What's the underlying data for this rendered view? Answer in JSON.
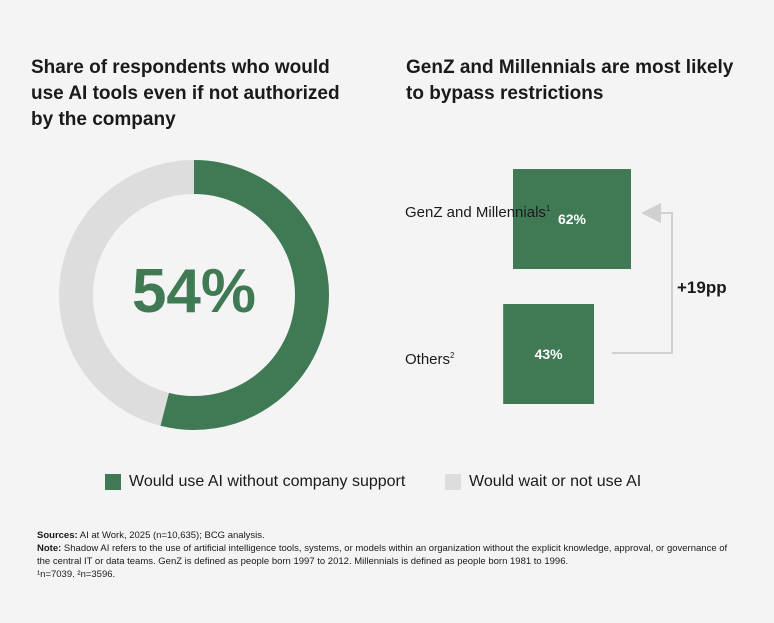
{
  "chart_data": [
    {
      "type": "pie",
      "style": "donut",
      "title": "Share of respondents who would use AI tools even if not authorized by the company",
      "center_label": "54%",
      "slices": [
        {
          "name": "Would use AI without company support",
          "value": 54
        },
        {
          "name": "Would wait or not use AI",
          "value": 46
        }
      ],
      "colors": [
        "#3f7a55",
        "#dddddd"
      ]
    },
    {
      "type": "bar",
      "title": "GenZ and Millennials are most likely to bypass restrictions",
      "categories": [
        "GenZ and Millennials",
        "Others"
      ],
      "category_sups": [
        "1",
        "2"
      ],
      "values": [
        62,
        43
      ],
      "value_labels": [
        "62%",
        "43%"
      ],
      "annotation": "+19pp",
      "color": "#3f7a55"
    }
  ],
  "legend": [
    {
      "label": "Would use AI without company support",
      "color": "#3f7a55"
    },
    {
      "label": "Would wait or not use AI",
      "color": "#dddddd"
    }
  ],
  "footnote": {
    "sources_label": "Sources:",
    "sources_text": " AI at Work, 2025 (n=10,635); BCG analysis.",
    "note_label": "Note:",
    "note_text": " Shadow AI refers to the use of artificial intelligence tools, systems, or models within an organization without the explicit knowledge, approval, or governance of the central IT or data teams. GenZ is defined as people born 1997 to 2012. Millennials is defined as people born 1981 to 1996.",
    "n_text": "¹n=7039.  ²n=3596."
  }
}
